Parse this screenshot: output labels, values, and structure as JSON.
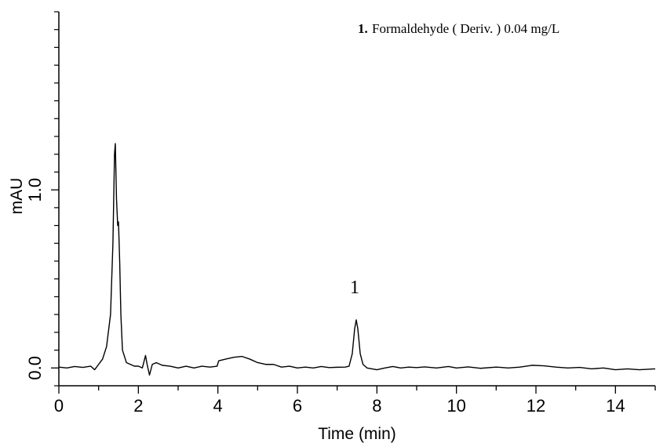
{
  "chart_data": {
    "type": "line",
    "legend_number": "1.",
    "legend_text": "Formaldehyde ( Deriv. )  0.04 mg/L",
    "xlabel": "Time (min)",
    "ylabel": "mAU",
    "annotations": [
      {
        "text": "1",
        "x": 7.48,
        "y": 0.42
      }
    ],
    "xlim": [
      0,
      15
    ],
    "ylim": [
      -0.1,
      2.0
    ],
    "xticks": [
      0,
      2,
      4,
      6,
      8,
      10,
      12,
      14
    ],
    "x_minor_ticks": [
      1,
      3,
      5,
      7,
      9,
      11,
      13,
      15
    ],
    "yticks": [
      {
        "value": 0,
        "label": "0.0"
      },
      {
        "value": 1,
        "label": "1.0"
      }
    ],
    "y_minor_ticks": [
      -0.1,
      0.1,
      0.2,
      0.3,
      0.4,
      0.5,
      0.6,
      0.7,
      0.8,
      0.9,
      1.1,
      1.2,
      1.3,
      1.4,
      1.5,
      1.6,
      1.7,
      1.8,
      1.9,
      2.0
    ],
    "series": [
      {
        "color": "#000000",
        "x": [
          0,
          0.2,
          0.4,
          0.6,
          0.8,
          0.9,
          1.0,
          1.1,
          1.2,
          1.3,
          1.36,
          1.4,
          1.42,
          1.45,
          1.48,
          1.5,
          1.53,
          1.56,
          1.6,
          1.7,
          1.8,
          1.9,
          2.0,
          2.1,
          2.18,
          2.22,
          2.28,
          2.35,
          2.45,
          2.6,
          2.8,
          3.0,
          3.2,
          3.4,
          3.6,
          3.8,
          3.98,
          4.02,
          4.2,
          4.4,
          4.6,
          4.8,
          5.0,
          5.2,
          5.4,
          5.6,
          5.8,
          6.0,
          6.2,
          6.4,
          6.6,
          6.8,
          7.0,
          7.2,
          7.3,
          7.38,
          7.44,
          7.48,
          7.52,
          7.58,
          7.65,
          7.75,
          8.0,
          8.2,
          8.4,
          8.6,
          8.8,
          9.0,
          9.2,
          9.5,
          9.8,
          10.0,
          10.3,
          10.6,
          11.0,
          11.3,
          11.6,
          11.9,
          12.2,
          12.5,
          12.8,
          13.1,
          13.4,
          13.7,
          14.0,
          14.3,
          14.6,
          15.0
        ],
        "values": [
          0.005,
          0.0,
          0.008,
          0.003,
          0.01,
          -0.01,
          0.02,
          0.05,
          0.12,
          0.3,
          0.7,
          1.2,
          1.26,
          0.95,
          0.8,
          0.82,
          0.6,
          0.3,
          0.1,
          0.03,
          0.02,
          0.01,
          0.01,
          0.0,
          0.07,
          0.02,
          -0.04,
          0.02,
          0.03,
          0.015,
          0.01,
          0.0,
          0.01,
          0.0,
          0.01,
          0.005,
          0.01,
          0.04,
          0.05,
          0.06,
          0.065,
          0.05,
          0.03,
          0.02,
          0.02,
          0.005,
          0.01,
          0.0,
          0.005,
          0.0,
          0.008,
          0.002,
          0.004,
          0.005,
          0.01,
          0.08,
          0.22,
          0.27,
          0.22,
          0.08,
          0.02,
          0.0,
          -0.01,
          0.0,
          0.008,
          0.0,
          0.005,
          0.002,
          0.006,
          0.0,
          0.008,
          0.0,
          0.006,
          -0.002,
          0.005,
          0.0,
          0.005,
          0.015,
          0.012,
          0.005,
          0.0,
          0.003,
          -0.005,
          0.0,
          -0.01,
          -0.005,
          -0.01,
          -0.005
        ]
      }
    ]
  }
}
